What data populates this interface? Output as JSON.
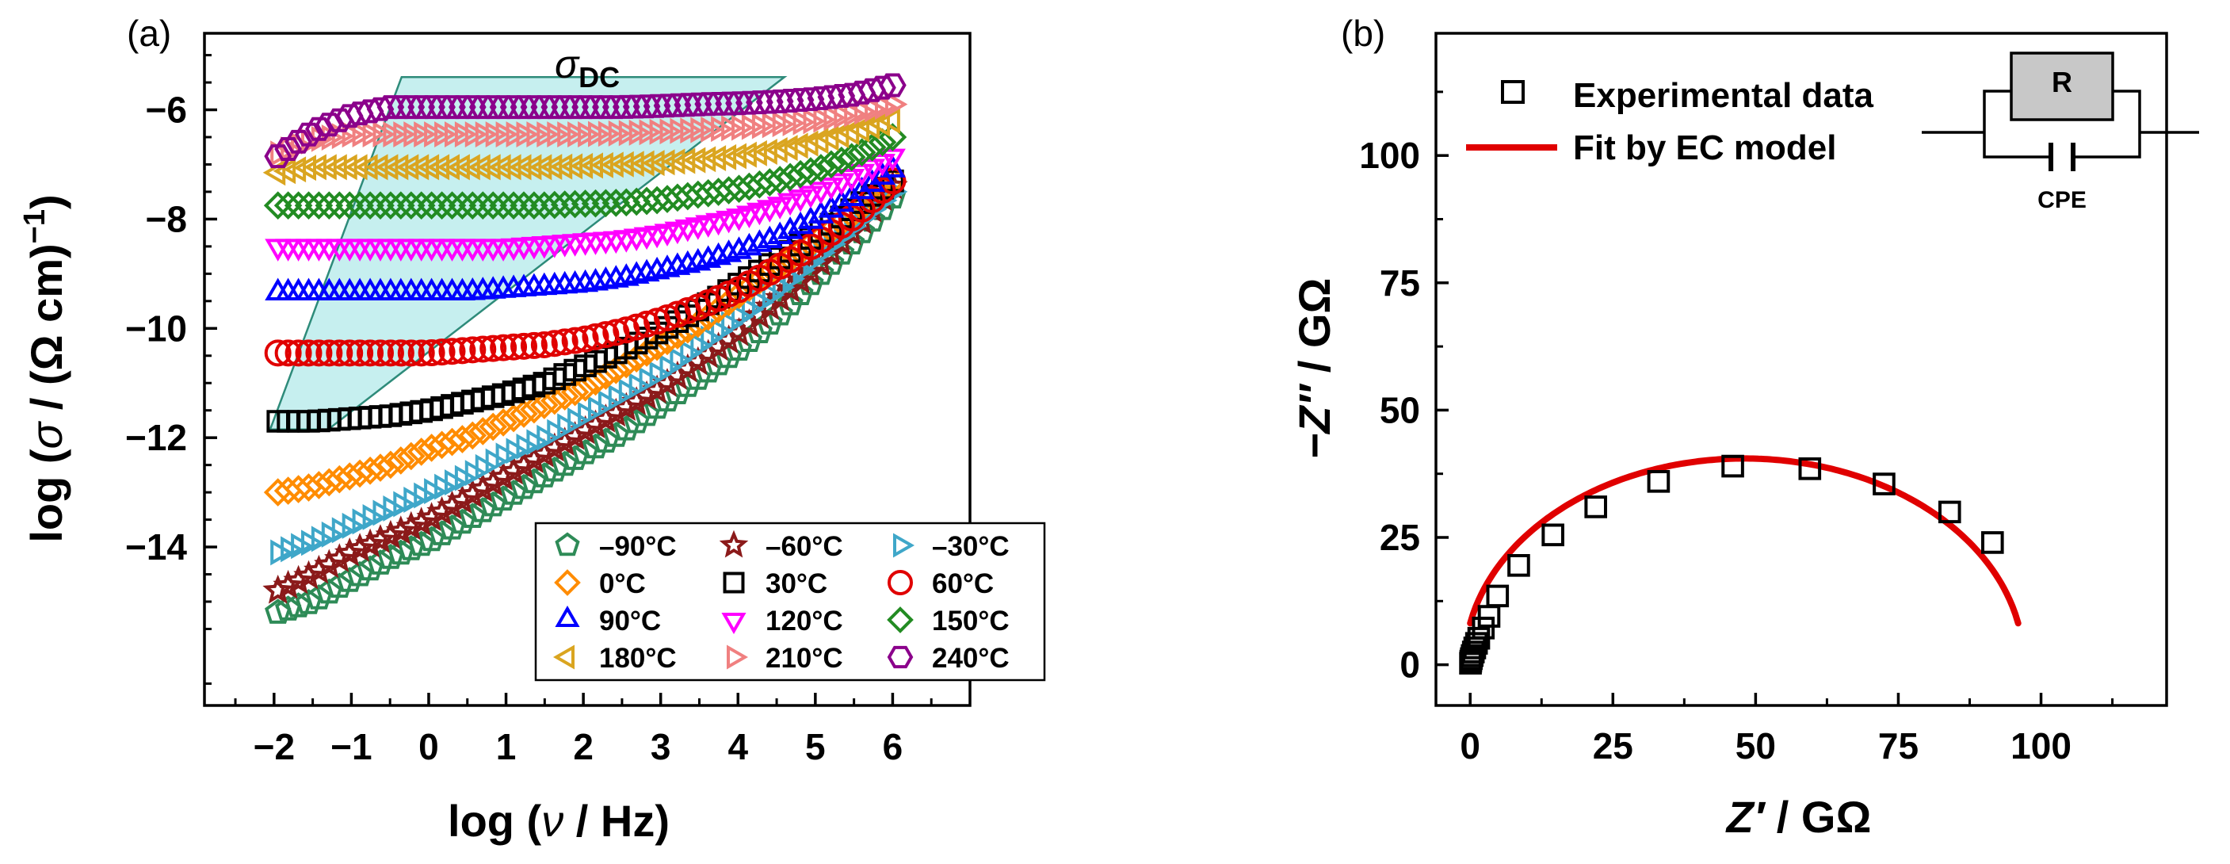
{
  "chart_data": [
    {
      "panel_label": "(a)",
      "type": "scatter",
      "xlabel_parts": [
        "log (",
        "ν",
        " / Hz)"
      ],
      "ylabel_parts": [
        "log (",
        "σ",
        " / (Ω cm)",
        "−1",
        ")"
      ],
      "x_ticks": [
        -2,
        -1,
        0,
        1,
        2,
        3,
        4,
        5,
        6
      ],
      "x_tick_labels": [
        "−2",
        "−1",
        "0",
        "1",
        "2",
        "3",
        "4",
        "5",
        "6"
      ],
      "y_ticks": [
        -14,
        -12,
        -10,
        -8,
        -6
      ],
      "y_tick_labels": [
        "−14",
        "−12",
        "−10",
        "−8",
        "−6"
      ],
      "xlim": [
        -2.9,
        7.0
      ],
      "ylim": [
        -16.9,
        -4.6
      ],
      "annotation": {
        "main": "σ",
        "sub": "DC"
      },
      "dc_region_polygon": [
        [
          -2.05,
          -11.85
        ],
        [
          -0.35,
          -5.4
        ],
        [
          4.6,
          -5.4
        ],
        [
          -1.3,
          -11.85
        ]
      ],
      "legend_position": "lower-right",
      "series": [
        {
          "name": "–90°C",
          "color": "#2e8b57",
          "marker": "pentagon",
          "x": [
            -1.95,
            -1.5,
            -1.0,
            -0.5,
            0.0,
            0.5,
            1.0,
            1.5,
            2.0,
            2.5,
            3.0,
            3.5,
            4.0,
            4.5,
            5.0,
            5.5,
            6.0
          ],
          "y": [
            -15.2,
            -15.0,
            -14.6,
            -14.2,
            -13.9,
            -13.5,
            -13.1,
            -12.7,
            -12.3,
            -11.9,
            -11.4,
            -10.9,
            -10.4,
            -9.8,
            -9.1,
            -8.4,
            -7.6
          ]
        },
        {
          "name": "–60°C",
          "color": "#8b1a1a",
          "marker": "star",
          "x": [
            -1.95,
            -1.5,
            -1.0,
            -0.5,
            0.0,
            0.5,
            1.0,
            1.5,
            2.0,
            2.5,
            3.0,
            3.5,
            4.0,
            4.5,
            5.0,
            5.5,
            6.0
          ],
          "y": [
            -14.8,
            -14.5,
            -14.1,
            -13.8,
            -13.5,
            -13.1,
            -12.7,
            -12.3,
            -11.9,
            -11.5,
            -11.1,
            -10.6,
            -10.1,
            -9.5,
            -8.9,
            -8.2,
            -7.4
          ]
        },
        {
          "name": "–30°C",
          "color": "#3fa7c9",
          "marker": "tri-right",
          "x": [
            -1.95,
            -1.5,
            -1.0,
            -0.5,
            0.0,
            0.5,
            1.0,
            1.5,
            2.0,
            2.5,
            3.0,
            3.5,
            4.0,
            4.5,
            5.0,
            5.5,
            6.0
          ],
          "y": [
            -14.1,
            -13.9,
            -13.6,
            -13.3,
            -13.0,
            -12.7,
            -12.3,
            -12.0,
            -11.6,
            -11.2,
            -10.8,
            -10.3,
            -9.8,
            -9.3,
            -8.7,
            -8.1,
            -7.5
          ]
        },
        {
          "name": "0°C",
          "color": "#ff8c00",
          "marker": "diamond",
          "x": [
            -1.95,
            -1.5,
            -1.0,
            -0.5,
            0.0,
            0.5,
            1.0,
            1.5,
            2.0,
            2.5,
            3.0,
            3.5,
            4.0,
            4.5,
            5.0,
            5.5,
            6.0
          ],
          "y": [
            -13.0,
            -12.9,
            -12.7,
            -12.5,
            -12.2,
            -12.0,
            -11.7,
            -11.4,
            -11.1,
            -10.7,
            -10.3,
            -9.9,
            -9.4,
            -8.9,
            -8.4,
            -7.9,
            -7.3
          ]
        },
        {
          "name": "30°C",
          "color": "#000000",
          "marker": "square",
          "x": [
            -1.95,
            -1.5,
            -1.0,
            -0.5,
            0.0,
            0.5,
            1.0,
            1.5,
            2.0,
            2.5,
            3.0,
            3.5,
            4.0,
            4.5,
            5.0,
            5.5,
            6.0
          ],
          "y": [
            -11.7,
            -11.7,
            -11.65,
            -11.6,
            -11.5,
            -11.35,
            -11.2,
            -11.0,
            -10.7,
            -10.4,
            -10.05,
            -9.65,
            -9.2,
            -8.75,
            -8.3,
            -7.8,
            -7.3
          ]
        },
        {
          "name": "60°C",
          "color": "#e00000",
          "marker": "circle",
          "x": [
            -1.95,
            -1.5,
            -1.0,
            -0.5,
            0.0,
            0.5,
            1.0,
            1.5,
            2.0,
            2.5,
            3.0,
            3.5,
            4.0,
            4.5,
            5.0,
            5.5,
            6.0
          ],
          "y": [
            -10.45,
            -10.45,
            -10.45,
            -10.45,
            -10.45,
            -10.4,
            -10.35,
            -10.3,
            -10.2,
            -10.05,
            -9.85,
            -9.6,
            -9.3,
            -8.9,
            -8.45,
            -7.95,
            -7.3
          ]
        },
        {
          "name": "90°C",
          "color": "#0000ff",
          "marker": "tri-up",
          "x": [
            -1.95,
            -1.5,
            -1.0,
            -0.5,
            0.0,
            0.5,
            1.0,
            1.5,
            2.0,
            2.5,
            3.0,
            3.5,
            4.0,
            4.5,
            5.0,
            5.5,
            6.0
          ],
          "y": [
            -9.35,
            -9.35,
            -9.35,
            -9.35,
            -9.35,
            -9.35,
            -9.3,
            -9.25,
            -9.2,
            -9.1,
            -8.95,
            -8.8,
            -8.6,
            -8.35,
            -8.0,
            -7.6,
            -7.1
          ]
        },
        {
          "name": "120°C",
          "color": "#ff00ff",
          "marker": "tri-down",
          "x": [
            -1.95,
            -1.5,
            -1.0,
            -0.5,
            0.0,
            0.5,
            1.0,
            1.5,
            2.0,
            2.5,
            3.0,
            3.5,
            4.0,
            4.5,
            5.0,
            5.5,
            6.0
          ],
          "y": [
            -8.5,
            -8.5,
            -8.5,
            -8.5,
            -8.5,
            -8.5,
            -8.5,
            -8.45,
            -8.4,
            -8.35,
            -8.25,
            -8.1,
            -7.95,
            -7.75,
            -7.5,
            -7.2,
            -6.85
          ]
        },
        {
          "name": "150°C",
          "color": "#228b22",
          "marker": "diamond",
          "x": [
            -1.95,
            -1.5,
            -1.0,
            -0.5,
            0.0,
            0.5,
            1.0,
            1.5,
            2.0,
            2.5,
            3.0,
            3.5,
            4.0,
            4.5,
            5.0,
            5.5,
            6.0
          ],
          "y": [
            -7.75,
            -7.75,
            -7.75,
            -7.75,
            -7.75,
            -7.75,
            -7.75,
            -7.75,
            -7.72,
            -7.7,
            -7.65,
            -7.55,
            -7.45,
            -7.3,
            -7.1,
            -6.85,
            -6.5
          ]
        },
        {
          "name": "180°C",
          "color": "#daa520",
          "marker": "tri-left",
          "x": [
            -1.95,
            -1.5,
            -1.0,
            -0.5,
            0.0,
            0.5,
            1.0,
            1.5,
            2.0,
            2.5,
            3.0,
            3.5,
            4.0,
            4.5,
            5.0,
            5.5,
            6.0
          ],
          "y": [
            -7.15,
            -7.05,
            -7.05,
            -7.05,
            -7.05,
            -7.05,
            -7.05,
            -7.05,
            -7.03,
            -7.0,
            -6.97,
            -6.92,
            -6.85,
            -6.75,
            -6.6,
            -6.4,
            -6.2
          ]
        },
        {
          "name": "210°C",
          "color": "#f08080",
          "marker": "tri-right",
          "x": [
            -1.95,
            -1.5,
            -1.0,
            -0.5,
            0.0,
            0.5,
            1.0,
            1.5,
            2.0,
            2.5,
            3.0,
            3.5,
            4.0,
            4.5,
            5.0,
            5.5,
            6.0
          ],
          "y": [
            -6.8,
            -6.55,
            -6.45,
            -6.45,
            -6.45,
            -6.45,
            -6.45,
            -6.45,
            -6.45,
            -6.43,
            -6.4,
            -6.37,
            -6.33,
            -6.27,
            -6.2,
            -6.07,
            -5.9
          ]
        },
        {
          "name": "240°C",
          "color": "#8b008b",
          "marker": "hexagon",
          "x": [
            -1.95,
            -1.5,
            -1.0,
            -0.5,
            0.0,
            0.5,
            1.0,
            1.5,
            2.0,
            2.5,
            3.0,
            3.5,
            4.0,
            4.5,
            5.0,
            5.5,
            6.0
          ],
          "y": [
            -6.85,
            -6.4,
            -6.1,
            -5.95,
            -5.95,
            -5.95,
            -5.95,
            -5.95,
            -5.95,
            -5.95,
            -5.93,
            -5.9,
            -5.88,
            -5.85,
            -5.8,
            -5.72,
            -5.55
          ]
        }
      ]
    },
    {
      "panel_label": "(b)",
      "type": "scatter",
      "xlabel_parts": [
        "Z′",
        " / GΩ"
      ],
      "ylabel_parts": [
        "−Z″",
        " / GΩ"
      ],
      "x_ticks": [
        0,
        25,
        50,
        75,
        100
      ],
      "x_tick_labels": [
        "0",
        "25",
        "50",
        "75",
        "100"
      ],
      "y_ticks": [
        0,
        25,
        50,
        75,
        100
      ],
      "y_tick_labels": [
        "0",
        "25",
        "50",
        "75",
        "100"
      ],
      "xlim": [
        -6,
        122
      ],
      "ylim": [
        -8,
        124
      ],
      "legend_position": "top-left",
      "legend": {
        "experimental": "Experimental data",
        "fit": "Fit by EC model"
      },
      "circuit": {
        "resistor": "R",
        "capacitor": "CPE"
      },
      "experimental": {
        "color": "#000000",
        "marker": "square",
        "x": [
          0.05,
          0.1,
          0.2,
          0.35,
          0.55,
          0.8,
          1.1,
          1.5,
          2.3,
          3.3,
          4.8,
          8.5,
          14.5,
          22,
          33,
          46,
          59.5,
          72.5,
          84,
          91.5
        ],
        "y": [
          0.3,
          0.7,
          1.2,
          1.8,
          2.5,
          3.3,
          4.2,
          5.2,
          7.2,
          9.5,
          13.5,
          19.5,
          25.5,
          31,
          36,
          39,
          38.5,
          35.5,
          30,
          24
        ]
      },
      "fit": {
        "color": "#e00000",
        "center": 48,
        "radius": 49,
        "depth": 40.5,
        "x_start": 0,
        "x_end": 96
      }
    }
  ]
}
